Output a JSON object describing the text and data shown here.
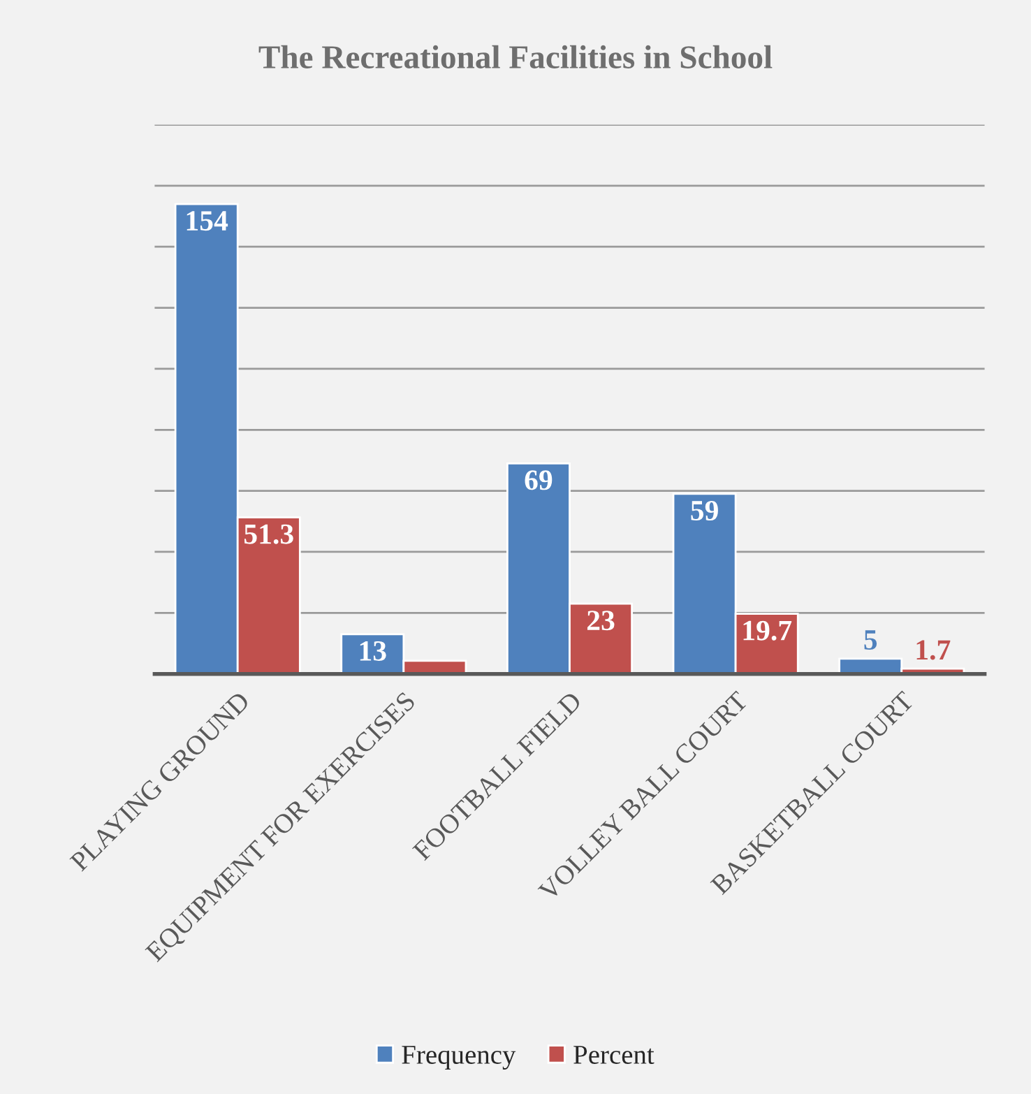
{
  "chart_data": {
    "type": "bar",
    "title": "The Recreational Facilities in School",
    "categories": [
      "PLAYING GROUND",
      "EQUIPMENT FOR EXERCISES",
      "FOOTBALL FIELD",
      "VOLLEY BALL COURT",
      "BASKETBALL COURT"
    ],
    "series": [
      {
        "name": "Frequency",
        "color": "#4f81bd",
        "values": [
          154,
          13,
          69,
          59,
          5
        ],
        "value_labels": [
          "154",
          "13",
          "69",
          "59",
          "5"
        ]
      },
      {
        "name": "Percent",
        "color": "#c0504d",
        "values": [
          51.3,
          4.3,
          23,
          19.7,
          1.7
        ],
        "value_labels": [
          "51.3",
          null,
          "23",
          "19.7",
          "1.7"
        ]
      }
    ],
    "ylim": [
      0,
      180
    ],
    "yticks": [
      {
        "value": 0,
        "label": null
      },
      {
        "value": 20,
        "label": null
      },
      {
        "value": 40,
        "label": null
      },
      {
        "value": 60,
        "label": null
      },
      {
        "value": 80,
        "label": null
      },
      {
        "value": 100,
        "label": null
      },
      {
        "value": 120,
        "label": null
      },
      {
        "value": 140,
        "label": null
      },
      {
        "value": 160,
        "label": null
      },
      {
        "value": 180,
        "label": null
      }
    ],
    "tick_labels": "x",
    "grid": "y",
    "legend": "bottom"
  }
}
